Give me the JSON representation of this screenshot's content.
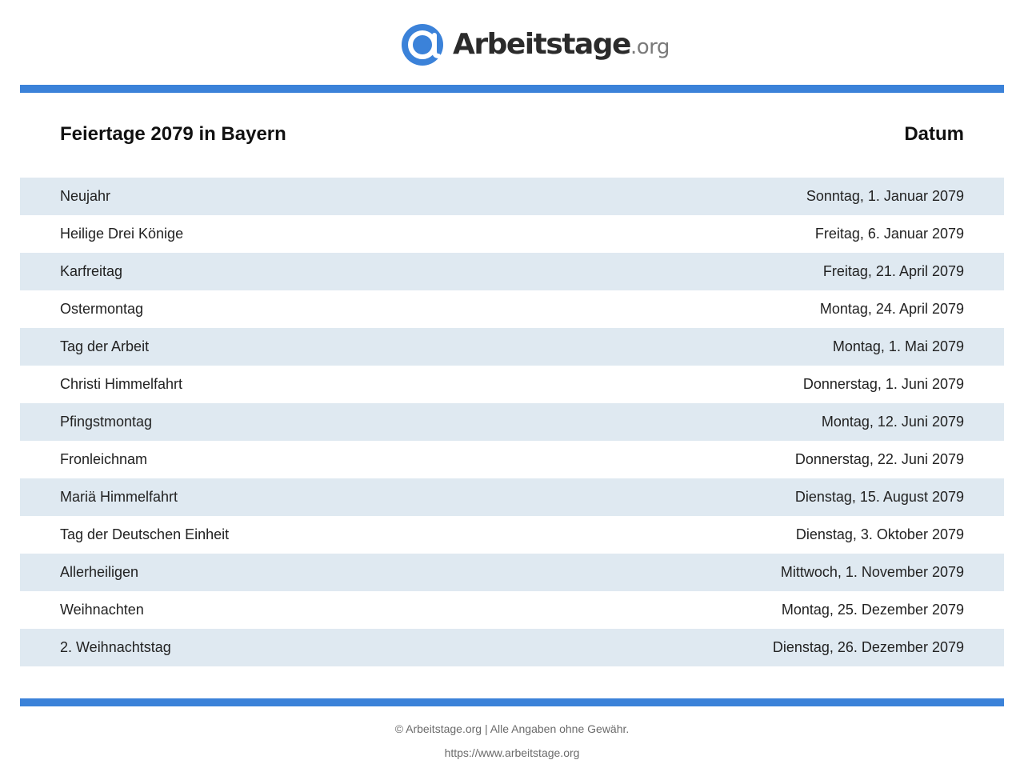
{
  "brand": {
    "name": "Arbeitstage",
    "tld": ".org",
    "logo_icon": "at-sign-icon",
    "accent_color": "#3b82d9"
  },
  "table": {
    "title": "Feiertage 2079 in Bayern",
    "date_header": "Datum",
    "row_color": "#dfe9f1",
    "rows": [
      {
        "name": "Neujahr",
        "date": "Sonntag, 1. Januar 2079"
      },
      {
        "name": "Heilige Drei Könige",
        "date": "Freitag, 6. Januar 2079"
      },
      {
        "name": "Karfreitag",
        "date": "Freitag, 21. April 2079"
      },
      {
        "name": "Ostermontag",
        "date": "Montag, 24. April 2079"
      },
      {
        "name": "Tag der Arbeit",
        "date": "Montag, 1. Mai 2079"
      },
      {
        "name": "Christi Himmelfahrt",
        "date": "Donnerstag, 1. Juni 2079"
      },
      {
        "name": "Pfingstmontag",
        "date": "Montag, 12. Juni 2079"
      },
      {
        "name": "Fronleichnam",
        "date": "Donnerstag, 22. Juni 2079"
      },
      {
        "name": "Mariä Himmelfahrt",
        "date": "Dienstag, 15. August 2079"
      },
      {
        "name": "Tag der Deutschen Einheit",
        "date": "Dienstag, 3. Oktober 2079"
      },
      {
        "name": "Allerheiligen",
        "date": "Mittwoch, 1. November 2079"
      },
      {
        "name": "Weihnachten",
        "date": "Montag, 25. Dezember 2079"
      },
      {
        "name": "2. Weihnachtstag",
        "date": "Dienstag, 26. Dezember 2079"
      }
    ]
  },
  "footer": {
    "copyright": "© Arbeitstage.org | Alle Angaben ohne Gewähr.",
    "url": "https://www.arbeitstage.org"
  }
}
